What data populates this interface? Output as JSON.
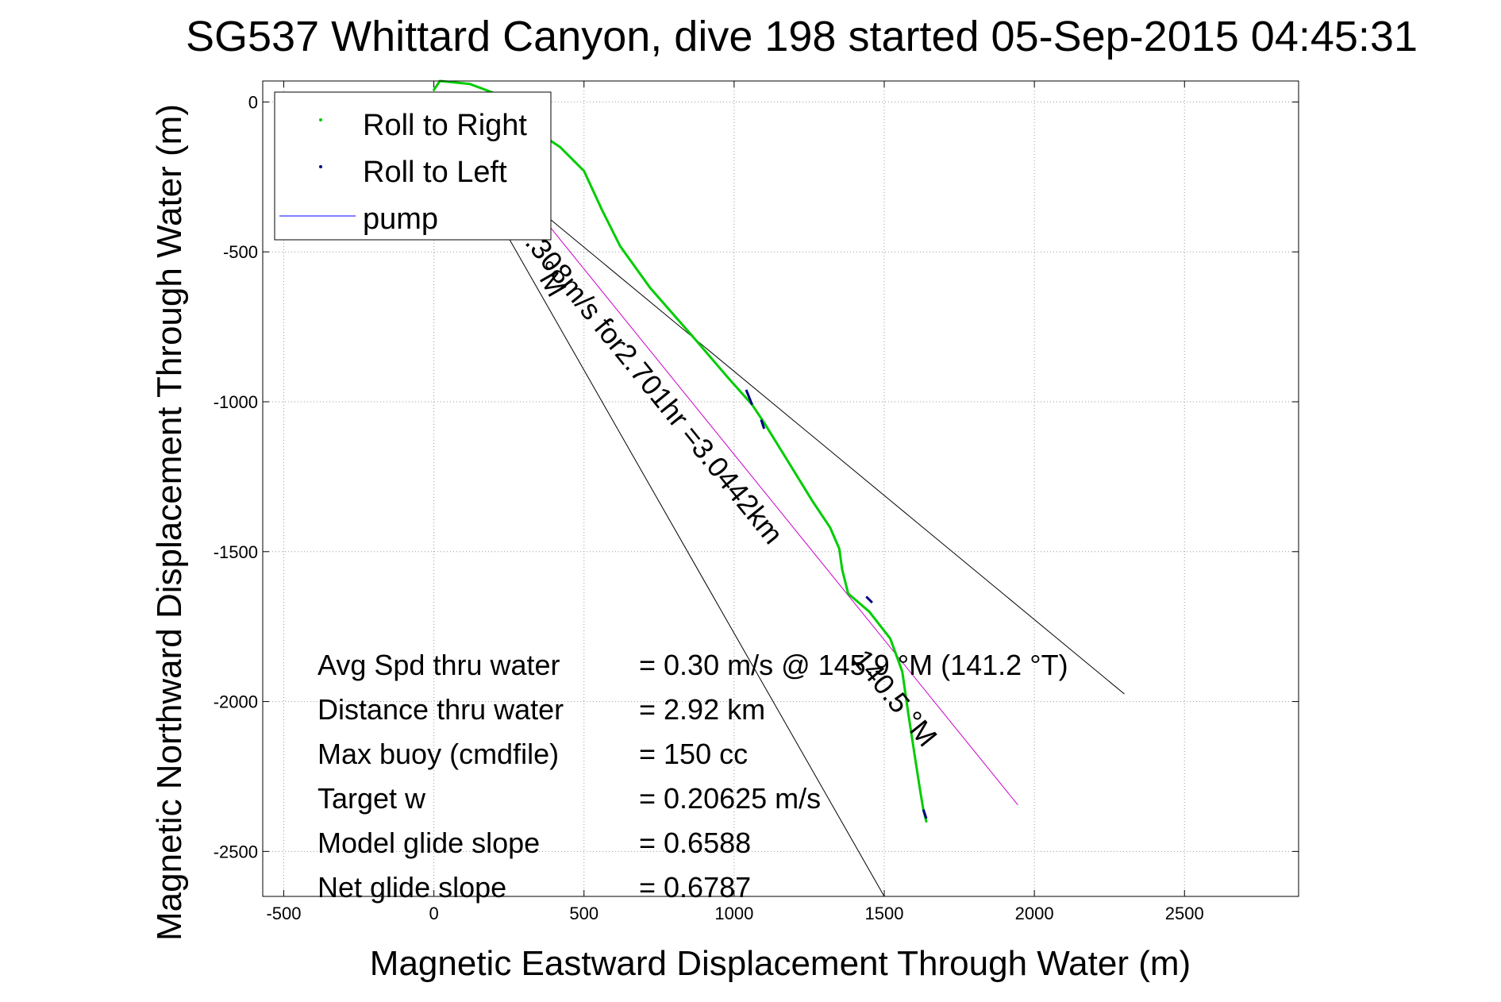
{
  "chart_data": {
    "type": "line",
    "title": "SG537 Whittard Canyon, dive 198 started 05-Sep-2015 04:45:31",
    "xlabel": "Magnetic Eastward Displacement Through Water (m)",
    "ylabel": "Magnetic Northward Displacement Through Water (m)",
    "xlim": [
      -570,
      2880
    ],
    "ylim": [
      -2650,
      70
    ],
    "x_ticks": [
      -500,
      0,
      500,
      1000,
      1500,
      2000,
      2500
    ],
    "y_ticks": [
      0,
      -500,
      -1000,
      -1500,
      -2000,
      -2500
    ],
    "grid": "on (dotted)",
    "legend_position": "top-left",
    "legend": [
      {
        "label": "Roll to Right",
        "color": "#00cc00",
        "marker": "dot"
      },
      {
        "label": "Roll to Left",
        "color": "#000080",
        "marker": "dot"
      },
      {
        "label": "pump",
        "color": "#0000ff",
        "marker": "line"
      }
    ],
    "series": [
      {
        "name": "Roll to Right",
        "color": "#00cc00",
        "x": [
          0,
          20,
          120,
          200,
          240,
          300,
          420,
          500,
          560,
          620,
          720,
          860,
          980,
          1060,
          1100,
          1180,
          1260,
          1320,
          1350,
          1360,
          1380,
          1450,
          1520,
          1560,
          1580,
          1600,
          1620,
          1630,
          1640
        ],
        "y": [
          40,
          70,
          60,
          30,
          -20,
          -70,
          -150,
          -230,
          -360,
          -480,
          -620,
          -780,
          -920,
          -1010,
          -1070,
          -1200,
          -1330,
          -1420,
          -1490,
          -1560,
          -1640,
          -1700,
          -1790,
          -1900,
          -2040,
          -2170,
          -2300,
          -2360,
          -2400
        ]
      },
      {
        "name": "Roll to Left",
        "color": "#000080",
        "segments": [
          {
            "x": [
              1040,
              1060
            ],
            "y": [
              -960,
              -1010
            ]
          },
          {
            "x": [
              1090,
              1100
            ],
            "y": [
              -1060,
              -1090
            ]
          },
          {
            "x": [
              1440,
              1460
            ],
            "y": [
              -1650,
              -1670
            ]
          },
          {
            "x": [
              1630,
              1640
            ],
            "y": [
              -2360,
              -2390
            ]
          }
        ]
      },
      {
        "name": "pump",
        "color": "#0000ff",
        "x": [],
        "y": []
      }
    ],
    "reference_lines": [
      {
        "color": "#000000",
        "x": [
          90,
          2300
        ],
        "y": [
          -145,
          -1975
        ]
      },
      {
        "color": "#000000",
        "x": [
          190,
          1500
        ],
        "y": [
          -350,
          -2650
        ]
      },
      {
        "color": "#cc00cc",
        "x": [
          175,
          1945
        ],
        "y": [
          -155,
          -2345
        ]
      }
    ],
    "annotations": [
      {
        "text": "°M",
        "x": 330,
        "y": -555,
        "rotation": 60
      },
      {
        "text": ".308m/s for2.701hr =3.0442km",
        "x": 300,
        "y": -470,
        "rotation": 51
      },
      {
        "text": "140.5 °M",
        "x": 1390,
        "y": -1860,
        "rotation": 51
      }
    ],
    "stats": [
      {
        "label": "Avg Spd thru water",
        "value": "=  0.30 m/s @ 145.9 °M (141.2 °T)"
      },
      {
        "label": "Distance thru water",
        "value": "=  2.92 km"
      },
      {
        "label": "Max buoy (cmdfile)",
        "value": "= 150 cc"
      },
      {
        "label": "Target w",
        "value": "= 0.20625 m/s"
      },
      {
        "label": "Model glide slope",
        "value": "= 0.6588"
      },
      {
        "label": "Net glide slope",
        "value": "= 0.6787"
      }
    ]
  }
}
